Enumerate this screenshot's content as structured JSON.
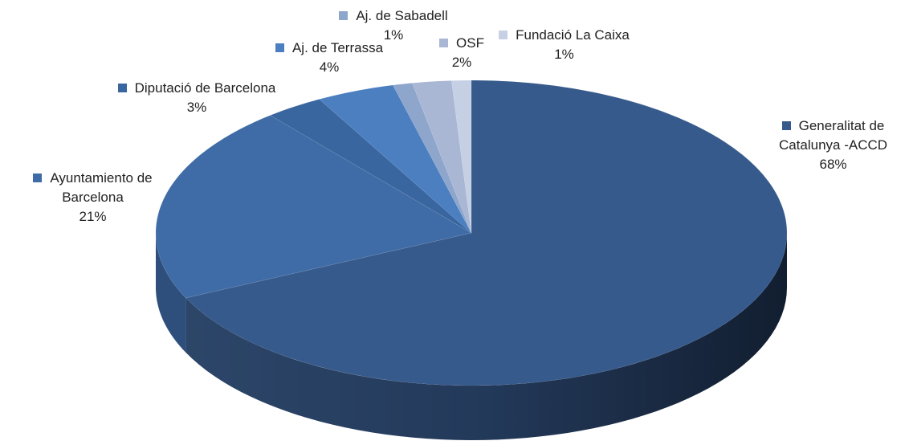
{
  "chart_data": {
    "type": "pie",
    "categories": [
      "Generalitat de Catalunya -ACCD",
      "Ayuntamiento de Barcelona",
      "Diputació de Barcelona",
      "Aj. de Terrassa",
      "Aj. de Sabadell",
      "OSF",
      "Fundació La Caixa"
    ],
    "values": [
      68,
      21,
      3,
      4,
      1,
      2,
      1
    ],
    "value_labels": [
      "68%",
      "21%",
      "3%",
      "4%",
      "1%",
      "2%",
      "1%"
    ],
    "colors": [
      "#375a8c",
      "#3f6ca6",
      "#3a66a0",
      "#4b7fc0",
      "#8ea5cc",
      "#a9b7d4",
      "#c6d0e4"
    ],
    "legend": "labels"
  }
}
